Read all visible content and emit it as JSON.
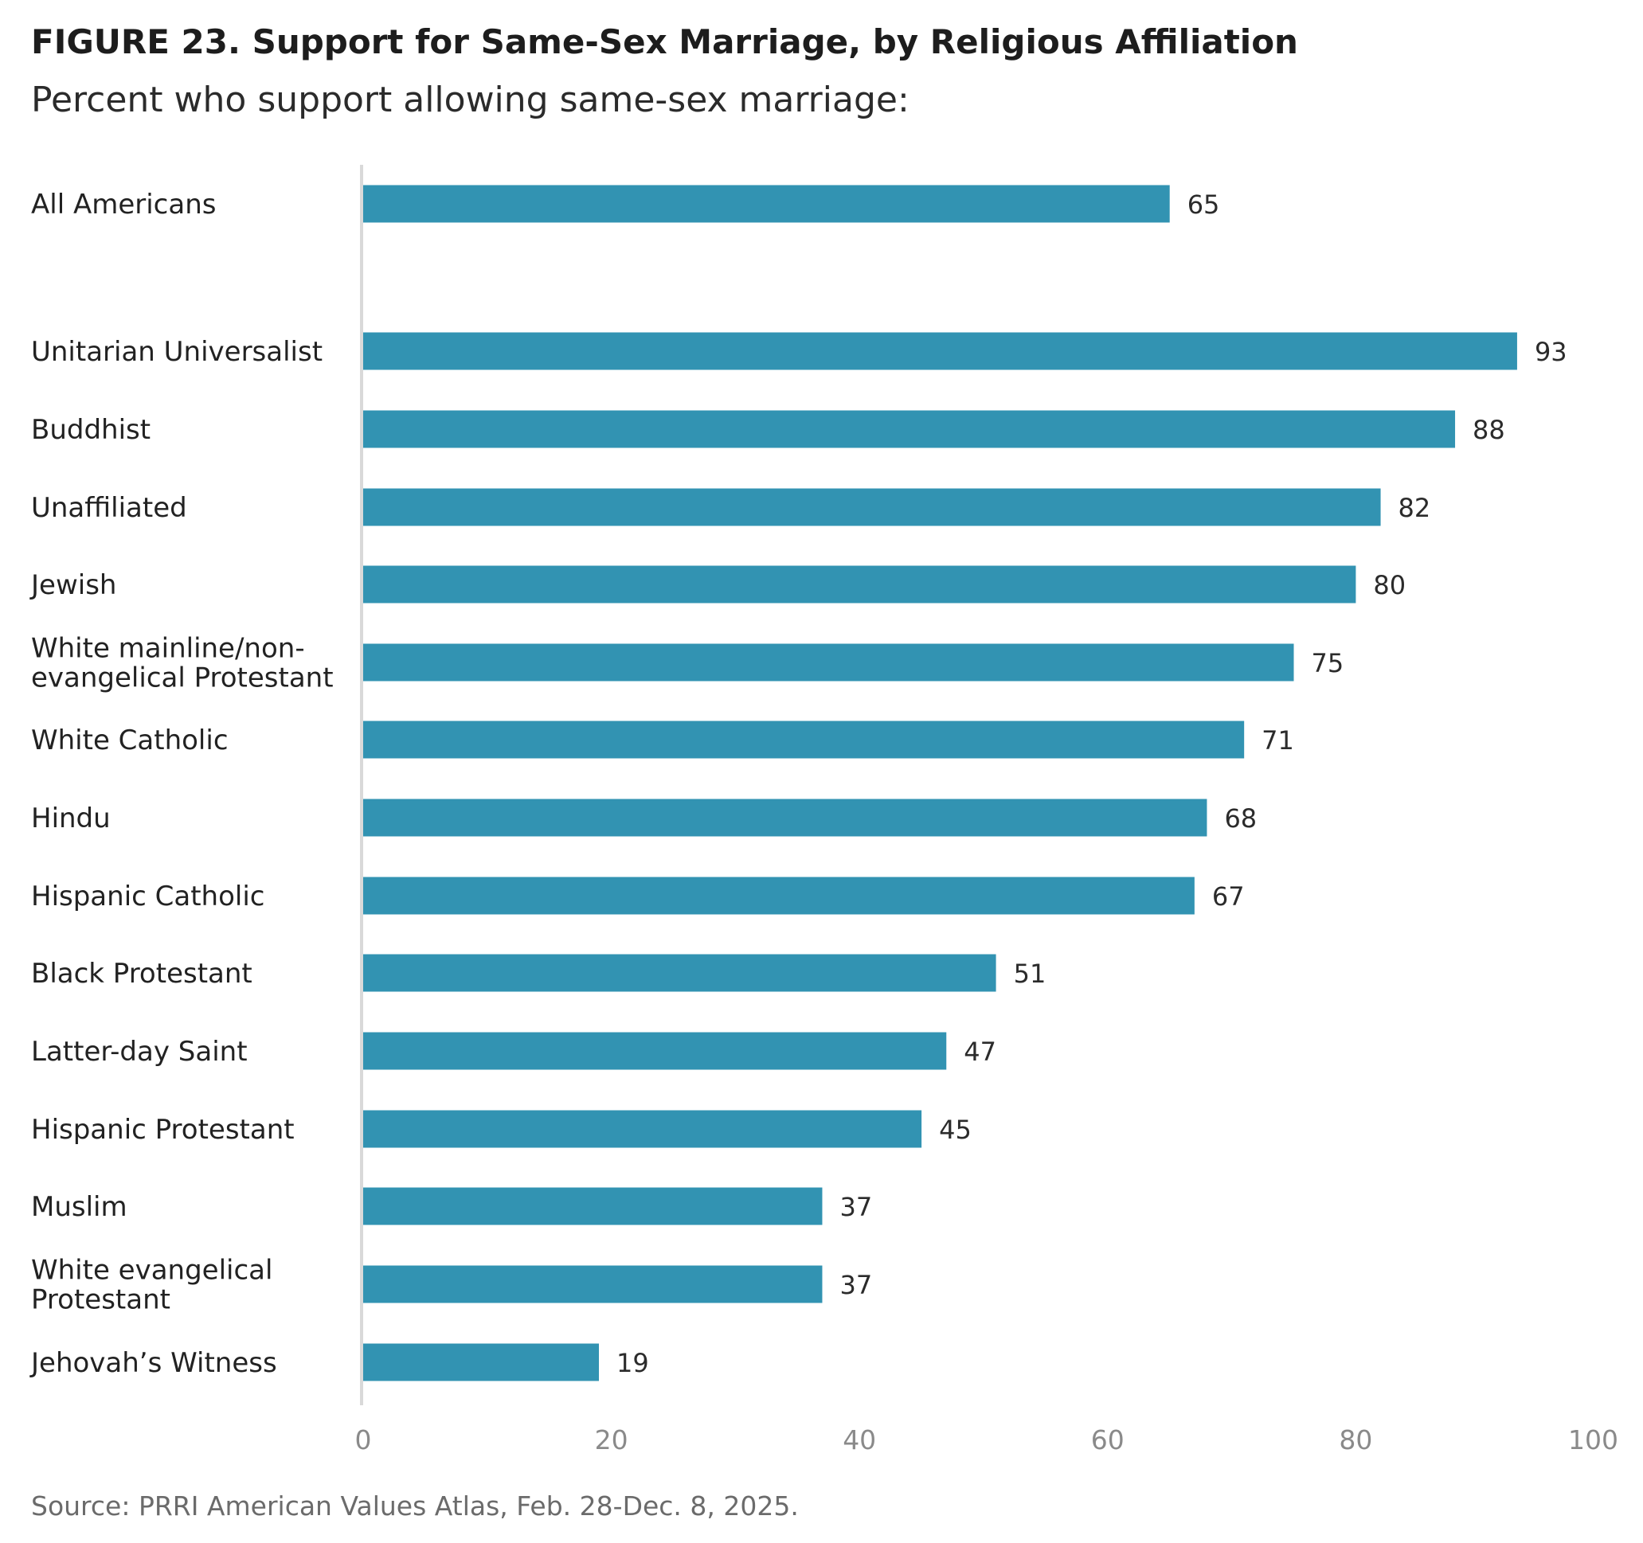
{
  "header": {
    "title": "FIGURE 23.  Support for Same-Sex Marriage, by Religious Affiliation",
    "subtitle": "Percent who support allowing same-sex marriage:"
  },
  "footer": {
    "source": "Source: PRRI American Values Atlas, Feb. 28-Dec. 8, 2025."
  },
  "colors": {
    "bar": "#3293b2",
    "axis": "#d9d9d9",
    "category_text": "#222222",
    "value_text": "#2b2b2b",
    "tick_text": "#8a8a8a"
  },
  "chart_data": {
    "type": "bar",
    "orientation": "horizontal",
    "title": "FIGURE 23.  Support for Same-Sex Marriage, by Religious Affiliation",
    "subtitle": "Percent who support allowing same-sex marriage:",
    "xlabel": "",
    "ylabel": "",
    "xlim": [
      0,
      100
    ],
    "x_ticks": [
      "0",
      "20",
      "40",
      "60",
      "80",
      "100"
    ],
    "grid": false,
    "categories": [
      [
        "All Americans"
      ],
      [
        "Unitarian Universalist"
      ],
      [
        "Buddhist"
      ],
      [
        "Unaffiliated"
      ],
      [
        "Jewish"
      ],
      [
        "White mainline/non-",
        "evangelical Protestant"
      ],
      [
        "White Catholic"
      ],
      [
        "Hindu"
      ],
      [
        "Hispanic Catholic"
      ],
      [
        "Black Protestant"
      ],
      [
        "Latter-day Saint"
      ],
      [
        "Hispanic Protestant"
      ],
      [
        "Muslim"
      ],
      [
        "White evangelical",
        "Protestant"
      ],
      [
        "Jehovah’s Witness"
      ]
    ],
    "values": [
      65,
      93,
      88,
      82,
      80,
      75,
      71,
      68,
      67,
      51,
      47,
      45,
      37,
      37,
      19
    ],
    "value_labels": [
      "65",
      "93",
      "88",
      "82",
      "80",
      "75",
      "71",
      "68",
      "67",
      "51",
      "47",
      "45",
      "37",
      "37",
      "19"
    ]
  }
}
